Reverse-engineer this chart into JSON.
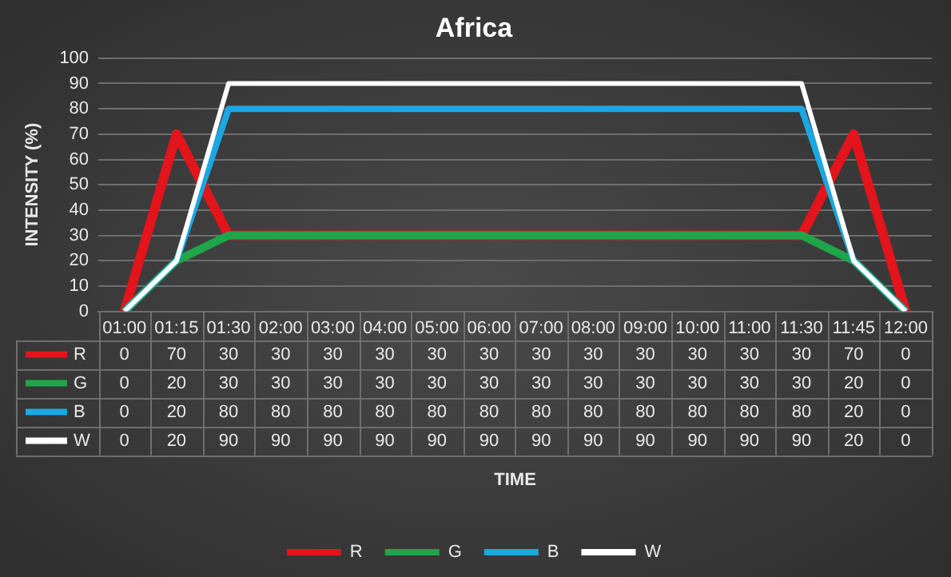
{
  "chart_data": {
    "type": "line",
    "title": "Africa",
    "annotations": [
      "TIME"
    ],
    "ylabel": "INTENSITY (%)",
    "categories": [
      "01:00",
      "01:15",
      "01:30",
      "02:00",
      "03:00",
      "04:00",
      "05:00",
      "06:00",
      "07:00",
      "08:00",
      "09:00",
      "10:00",
      "11:00",
      "11:30",
      "11:45",
      "12:00"
    ],
    "series": [
      {
        "name": "R",
        "color": "#e3141b",
        "values": [
          0,
          70,
          30,
          30,
          30,
          30,
          30,
          30,
          30,
          30,
          30,
          30,
          30,
          30,
          70,
          0
        ]
      },
      {
        "name": "G",
        "color": "#1fa64a",
        "values": [
          0,
          20,
          30,
          30,
          30,
          30,
          30,
          30,
          30,
          30,
          30,
          30,
          30,
          30,
          20,
          0
        ]
      },
      {
        "name": "B",
        "color": "#1ba7e2",
        "values": [
          0,
          20,
          80,
          80,
          80,
          80,
          80,
          80,
          80,
          80,
          80,
          80,
          80,
          80,
          20,
          0
        ]
      },
      {
        "name": "W",
        "color": "#ffffff",
        "values": [
          0,
          20,
          90,
          90,
          90,
          90,
          90,
          90,
          90,
          90,
          90,
          90,
          90,
          90,
          20,
          0
        ]
      }
    ],
    "ylim": [
      0,
      100
    ],
    "yticks": [
      0,
      10,
      20,
      30,
      40,
      50,
      60,
      70,
      80,
      90,
      100
    ],
    "grid": "y",
    "legend": "bottom",
    "data_labels": true,
    "marker": "none",
    "line_style": "solid"
  }
}
